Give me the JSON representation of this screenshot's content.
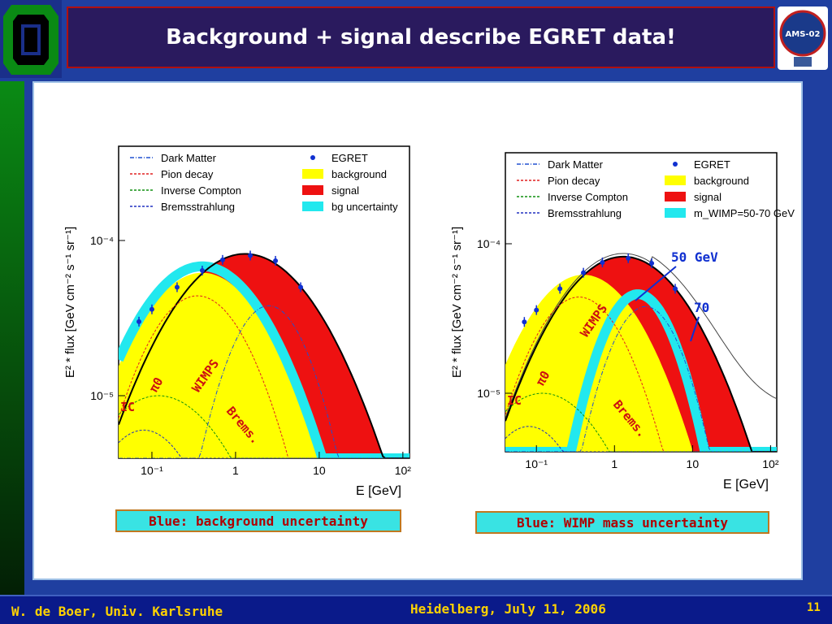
{
  "title": "Background + signal describe EGRET data!",
  "logo_text": "AMS-02",
  "footer": {
    "author": "W. de Boer, Univ. Karlsruhe",
    "event": "Heidelberg, July 11, 2006",
    "page": "11"
  },
  "captions": [
    "Blue: background uncertainty",
    "Blue: WIMP mass uncertainty"
  ],
  "colors": {
    "signal": "#ee1111",
    "background": "#ffff00",
    "uncertainty": "#22e8ee",
    "points": "#1030d0",
    "annotation": "#cc1010",
    "annotation_blue": "#1030d0"
  },
  "chart_data": [
    {
      "type": "area",
      "xlabel": "E [GeV]",
      "ylabel": "E² * flux [GeV cm⁻² s⁻¹ sr⁻¹]",
      "xscale": "log",
      "yscale": "log",
      "xlim": [
        0.04,
        120
      ],
      "x_ticks": [
        "10⁻¹",
        "1",
        "10",
        "10²"
      ],
      "y_ticks": [
        "10⁻⁵",
        "10⁻⁴"
      ],
      "legend": {
        "placement": "top",
        "entries": [
          "Dark Matter",
          "EGRET",
          "Pion decay",
          "background",
          "Inverse Compton",
          "signal",
          "Bremsstrahlung",
          "bg uncertainty"
        ]
      },
      "series": [
        {
          "name": "EGRET",
          "x": [
            0.07,
            0.1,
            0.2,
            0.4,
            0.7,
            1.5,
            3,
            6
          ],
          "y": [
            3e-05,
            3.6e-05,
            5e-05,
            6.4e-05,
            7.5e-05,
            8e-05,
            7.4e-05,
            5e-05
          ]
        }
      ],
      "annotations": [
        "π0",
        "WIMPS",
        "IC",
        "Brems."
      ]
    },
    {
      "type": "area",
      "xlabel": "E [GeV]",
      "ylabel": "E² * flux [GeV cm⁻² s⁻¹ sr⁻¹]",
      "xscale": "log",
      "yscale": "log",
      "xlim": [
        0.04,
        120
      ],
      "x_ticks": [
        "10⁻¹",
        "1",
        "10",
        "10²"
      ],
      "y_ticks": [
        "10⁻⁵",
        "10⁻⁴"
      ],
      "legend": {
        "placement": "top",
        "entries": [
          "Dark Matter",
          "EGRET",
          "Pion decay",
          "background",
          "Inverse Compton",
          "signal",
          "Bremsstrahlung",
          "m_WIMP=50-70 GeV"
        ]
      },
      "series": [
        {
          "name": "EGRET",
          "x": [
            0.07,
            0.1,
            0.2,
            0.4,
            0.7,
            1.5,
            3,
            6
          ],
          "y": [
            3e-05,
            3.6e-05,
            5e-05,
            6.4e-05,
            7.5e-05,
            8e-05,
            7.4e-05,
            5e-05
          ]
        }
      ],
      "annotations": [
        "π0",
        "WIMPS",
        "IC",
        "Brems.",
        "50 GeV",
        "70"
      ]
    }
  ]
}
